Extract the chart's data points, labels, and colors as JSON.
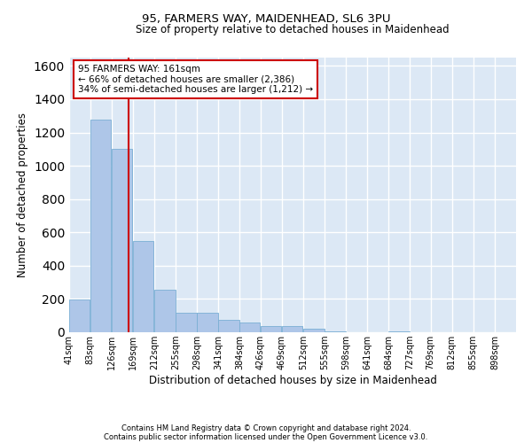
{
  "title1": "95, FARMERS WAY, MAIDENHEAD, SL6 3PU",
  "title2": "Size of property relative to detached houses in Maidenhead",
  "xlabel": "Distribution of detached houses by size in Maidenhead",
  "ylabel": "Number of detached properties",
  "annotation_line1": "95 FARMERS WAY: 161sqm",
  "annotation_line2": "← 66% of detached houses are smaller (2,386)",
  "annotation_line3": "34% of semi-detached houses are larger (1,212) →",
  "footnote1": "Contains HM Land Registry data © Crown copyright and database right 2024.",
  "footnote2": "Contains public sector information licensed under the Open Government Licence v3.0.",
  "bar_color": "#aec6e8",
  "bar_edge_color": "#7aafd4",
  "bar_left_edges": [
    41,
    83,
    126,
    169,
    212,
    255,
    298,
    341,
    384,
    426,
    469,
    512,
    555,
    598,
    641,
    684,
    727,
    769,
    812,
    855
  ],
  "bar_widths": [
    42,
    43,
    43,
    43,
    43,
    43,
    43,
    43,
    42,
    43,
    43,
    43,
    43,
    43,
    43,
    43,
    42,
    43,
    43,
    43
  ],
  "bar_heights": [
    195,
    1275,
    1100,
    550,
    255,
    115,
    115,
    75,
    60,
    35,
    35,
    20,
    5,
    0,
    0,
    5,
    0,
    0,
    0,
    0
  ],
  "tick_labels": [
    "41sqm",
    "83sqm",
    "126sqm",
    "169sqm",
    "212sqm",
    "255sqm",
    "298sqm",
    "341sqm",
    "384sqm",
    "426sqm",
    "469sqm",
    "512sqm",
    "555sqm",
    "598sqm",
    "641sqm",
    "684sqm",
    "727sqm",
    "769sqm",
    "812sqm",
    "855sqm",
    "898sqm"
  ],
  "ylim": [
    0,
    1650
  ],
  "yticks": [
    0,
    200,
    400,
    600,
    800,
    1000,
    1200,
    1400,
    1600
  ],
  "bg_color": "#dce8f5",
  "grid_color": "#ffffff",
  "annotation_box_color": "#cc0000",
  "vline_color": "#cc0000",
  "vline_x": 161
}
